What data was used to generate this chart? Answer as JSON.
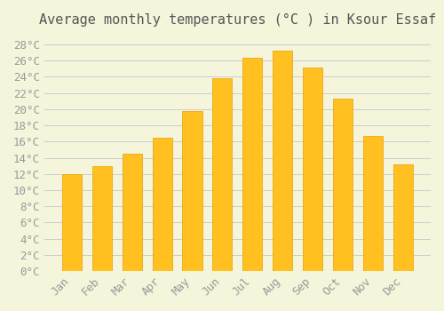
{
  "title": "Average monthly temperatures (°C ) in Ksour Essaf",
  "months": [
    "Jan",
    "Feb",
    "Mar",
    "Apr",
    "May",
    "Jun",
    "Jul",
    "Aug",
    "Sep",
    "Oct",
    "Nov",
    "Dec"
  ],
  "temperatures": [
    12.0,
    13.0,
    14.5,
    16.5,
    19.8,
    23.8,
    26.4,
    27.2,
    25.1,
    21.3,
    16.7,
    13.2
  ],
  "bar_color": "#FFC020",
  "bar_edge_color": "#E8A000",
  "background_color": "#F5F5DC",
  "grid_color": "#CCCCCC",
  "ylim": [
    0,
    29
  ],
  "ytick_step": 2,
  "title_fontsize": 11,
  "tick_fontsize": 9
}
